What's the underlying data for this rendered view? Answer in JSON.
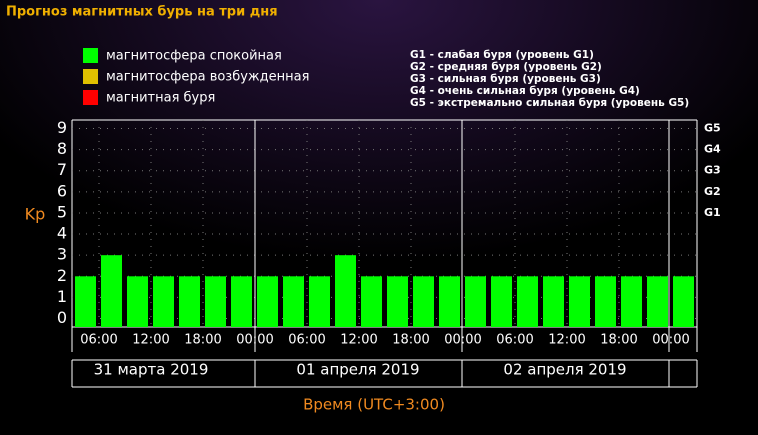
{
  "chart_data": {
    "type": "bar",
    "title": "Прогноз магнитных бурь на три дня",
    "legend": [
      {
        "label": "магнитосфера спокойная",
        "color": "#00ff00"
      },
      {
        "label": "магнитосфера возбужденная",
        "color": "#e0c000"
      },
      {
        "label": "магнитная буря",
        "color": "#ff0000"
      }
    ],
    "storm_levels": [
      "G1 - слабая буря (уровень G1)",
      "G2 - средняя буря (уровень G2)",
      "G3 - сильная буря (уровень G3)",
      "G4 - очень сильная буря (уровень G4)",
      "G5 - экстремально сильная буря (уровень G5)"
    ],
    "y_label": "Kp",
    "x_label": "Время (UTC+3:00)",
    "categories": [
      null,
      null,
      null,
      null,
      null,
      null,
      null,
      null,
      null,
      null,
      null,
      null,
      null,
      null,
      null,
      null,
      null,
      null,
      null,
      null,
      null,
      null,
      null,
      null
    ],
    "values": [
      2,
      3,
      2,
      2,
      2,
      2,
      2,
      2,
      2,
      2,
      3,
      2,
      2,
      2,
      2,
      2,
      2,
      2,
      2,
      2,
      2,
      2,
      2,
      2
    ],
    "color": "#00ff00",
    "ylim": [
      -0.4,
      9.4
    ],
    "yticks": [
      0,
      1,
      2,
      3,
      4,
      5,
      6,
      7,
      8,
      9
    ],
    "y2lim": [
      -0.4,
      9.4
    ],
    "y2ticks": [
      {
        "value": 5,
        "label": "G1"
      },
      {
        "value": 6,
        "label": "G2"
      },
      {
        "value": 7,
        "label": "G3"
      },
      {
        "value": 8,
        "label": "G4"
      },
      {
        "value": 9,
        "label": "G5"
      }
    ],
    "xtick_labels": [
      "06:00",
      "12:00",
      "18:00",
      "00:00",
      "06:00",
      "12:00",
      "18:00",
      "00:00",
      "06:00",
      "12:00",
      "18:00",
      "00:00"
    ],
    "days": [
      "31 марта 2019",
      "01 апреля 2019",
      "02 апреля 2019"
    ],
    "grid": true
  }
}
